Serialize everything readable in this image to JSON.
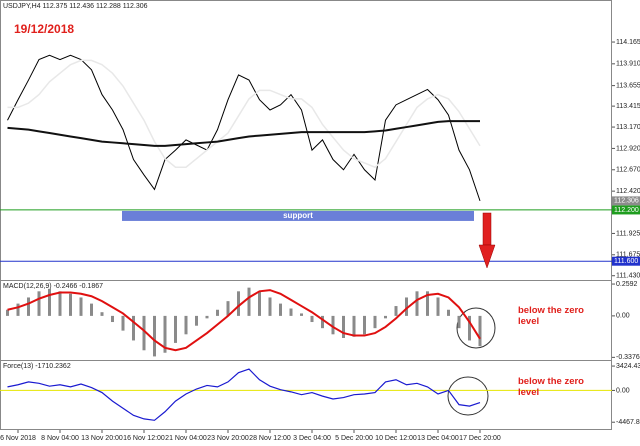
{
  "chart_data": [
    {
      "type": "line",
      "title": "USDJPY,H4  112.375 112.436 112.288 112.306",
      "annotation": "19/12/2018",
      "categories": [
        null,
        "6 Nov 2018",
        null,
        null,
        null,
        "8 Nov 04:00",
        null,
        null,
        null,
        "13 Nov 20:00",
        null,
        null,
        null,
        "16 Nov 12:00",
        null,
        null,
        null,
        "21 Nov 04:00",
        null,
        null,
        null,
        "23 Nov 20:00",
        null,
        null,
        null,
        "28 Nov 12:00",
        null,
        null,
        null,
        "3 Dec 04:00",
        null,
        null,
        null,
        "5 Dec 20:00",
        null,
        null,
        null,
        "10 Dec 12:00",
        null,
        null,
        null,
        "13 Dec 04:00",
        null,
        null,
        null,
        "17 Dec 20:00"
      ],
      "series": [
        {
          "color": "#000000",
          "line_width": 1,
          "values": [
            113.25,
            113.49,
            113.72,
            113.96,
            114.01,
            113.96,
            114.01,
            113.96,
            113.84,
            113.55,
            113.37,
            113.14,
            112.79,
            112.61,
            112.44,
            112.79,
            112.9,
            113.02,
            112.96,
            112.9,
            113.14,
            113.49,
            113.78,
            113.72,
            113.49,
            113.37,
            113.43,
            113.55,
            113.37,
            112.9,
            113.02,
            112.79,
            112.67,
            112.85,
            112.67,
            112.55,
            113.25,
            113.43,
            113.49,
            113.55,
            113.61,
            113.49,
            113.31,
            112.9,
            112.67,
            112.306
          ]
        },
        {
          "color": "#e8e8e8",
          "line_width": 1.5,
          "values": [
            113.4,
            113.4,
            113.45,
            113.55,
            113.7,
            113.8,
            113.9,
            113.95,
            113.95,
            113.9,
            113.8,
            113.65,
            113.45,
            113.25,
            113.0,
            112.8,
            112.7,
            112.7,
            112.8,
            112.9,
            113.0,
            113.1,
            113.3,
            113.5,
            113.6,
            113.6,
            113.55,
            113.5,
            113.5,
            113.4,
            113.2,
            113.05,
            112.9,
            112.8,
            112.75,
            112.7,
            112.8,
            113.0,
            113.2,
            113.4,
            113.5,
            113.55,
            113.5,
            113.35,
            113.15,
            112.95
          ]
        },
        {
          "color": "#111111",
          "line_width": 2,
          "values": [
            113.16,
            113.15,
            113.14,
            113.12,
            113.1,
            113.08,
            113.06,
            113.04,
            113.02,
            113.0,
            112.99,
            112.98,
            112.97,
            112.96,
            112.95,
            112.95,
            112.96,
            112.97,
            112.98,
            112.99,
            113.0,
            113.02,
            113.04,
            113.06,
            113.07,
            113.08,
            113.09,
            113.1,
            113.11,
            113.11,
            113.11,
            113.11,
            113.11,
            113.11,
            113.11,
            113.12,
            113.13,
            113.15,
            113.17,
            113.19,
            113.21,
            113.23,
            113.24,
            113.24,
            113.24,
            113.24
          ]
        }
      ],
      "ylim": [
        111.38,
        114.54
      ],
      "yticks": [
        114.165,
        {
          "value": 113.91,
          "label": "113.910"
        },
        113.655,
        113.415,
        {
          "value": 113.17,
          "label": "113.170"
        },
        {
          "value": 112.92,
          "label": "112.920"
        },
        {
          "value": 112.67,
          "label": "112.670"
        },
        {
          "value": 112.42,
          "label": "112.420"
        },
        111.925,
        111.675,
        {
          "value": 111.43,
          "label": "111.430"
        }
      ],
      "levels": [
        {
          "value": 112.306,
          "label": "112.306",
          "color": "#8c8c8c",
          "line": false
        },
        {
          "value": 112.2,
          "label": "112.200",
          "color": "#1f9d1f",
          "line": true
        },
        {
          "value": 111.6,
          "label": "111.600",
          "color": "#2233cc",
          "line": true
        }
      ],
      "zone_label": "support"
    },
    {
      "type": "macd",
      "title": "MACD(12,26,9) -0.2466 -0.1867",
      "annotation": "below the zero level",
      "series": [
        {
          "type": "bar",
          "color": "#8a8a8a",
          "values": [
            0.05,
            0.1,
            0.15,
            0.2,
            0.22,
            0.2,
            0.18,
            0.15,
            0.1,
            0.03,
            -0.05,
            -0.12,
            -0.2,
            -0.28,
            -0.33,
            -0.3,
            -0.22,
            -0.15,
            -0.08,
            -0.02,
            0.05,
            0.12,
            0.2,
            0.23,
            0.2,
            0.15,
            0.1,
            0.06,
            0.02,
            -0.05,
            -0.1,
            -0.15,
            -0.18,
            -0.17,
            -0.15,
            -0.1,
            -0.02,
            0.08,
            0.15,
            0.2,
            0.2,
            0.15,
            0.05,
            -0.1,
            -0.2,
            -0.2466
          ]
        },
        {
          "type": "line",
          "color": "#e01010",
          "line_width": 2,
          "values": [
            0.05,
            0.07,
            0.1,
            0.14,
            0.17,
            0.19,
            0.19,
            0.18,
            0.16,
            0.12,
            0.07,
            0.02,
            -0.05,
            -0.12,
            -0.2,
            -0.26,
            -0.28,
            -0.26,
            -0.2,
            -0.14,
            -0.07,
            0.0,
            0.08,
            0.15,
            0.2,
            0.21,
            0.18,
            0.13,
            0.08,
            0.03,
            -0.03,
            -0.09,
            -0.14,
            -0.16,
            -0.16,
            -0.14,
            -0.09,
            -0.02,
            0.06,
            0.13,
            0.17,
            0.18,
            0.15,
            0.07,
            -0.05,
            -0.1867
          ]
        }
      ],
      "ylim": [
        -0.351,
        0.284
      ],
      "yticks": [
        0.2592,
        {
          "value": 0,
          "label": "0.00"
        },
        -0.3376
      ]
    },
    {
      "type": "line",
      "title": "Force(13) -1710.2362",
      "annotation": "below the zero level",
      "series": [
        {
          "color": "#1a1ad0",
          "line_width": 1.2,
          "values": [
            500,
            800,
            1200,
            1000,
            600,
            800,
            500,
            900,
            400,
            -300,
            -1500,
            -2500,
            -3500,
            -4000,
            -4200,
            -3000,
            -1500,
            -500,
            200,
            700,
            500,
            1200,
            2500,
            3000,
            1500,
            600,
            100,
            -200,
            -600,
            -300,
            -800,
            -1200,
            -1000,
            -600,
            -500,
            -300,
            1200,
            1500,
            800,
            1000,
            500,
            -500,
            0,
            -2000,
            -2200,
            -1710.2362
          ]
        }
      ],
      "ylim": [
        -5563,
        4137
      ],
      "yticks": [
        3424.434,
        {
          "value": 0,
          "label": "0.00"
        },
        -4467.881
      ],
      "levels": [
        {
          "value": 0,
          "color": "#e6e600",
          "line": true
        }
      ]
    }
  ]
}
